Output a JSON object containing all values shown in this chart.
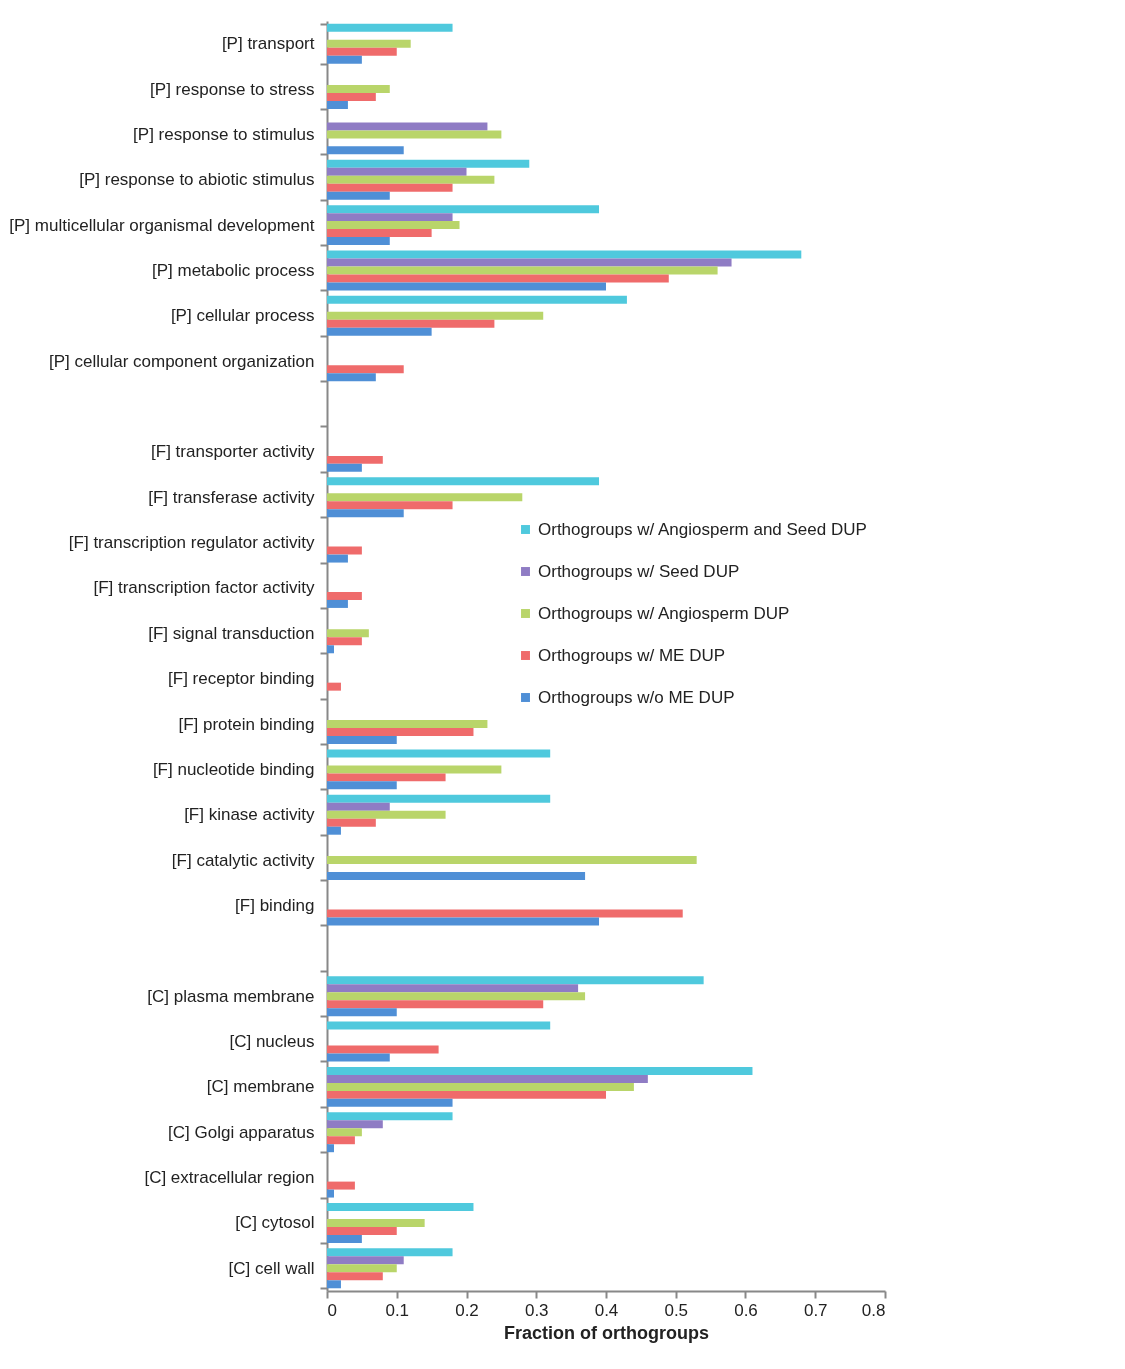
{
  "chart_data": {
    "type": "bar",
    "orientation": "horizontal",
    "xlabel": "Fraction of orthogroups",
    "xlim": [
      0,
      0.8
    ],
    "xticks": [
      0,
      0.1,
      0.2,
      0.3,
      0.4,
      0.5,
      0.6,
      0.7,
      0.8
    ],
    "grid": false,
    "legend": "right",
    "categories": [
      "[P] transport",
      "[P] response to stress",
      "[P] response to stimulus",
      "[P] response to abiotic stimulus",
      "[P] multicellular organismal development",
      "[P] metabolic process",
      "[P] cellular process",
      "[P] cellular component organization",
      null,
      "[F] transporter activity",
      "[F] transferase activity",
      "[F] transcription regulator activity",
      "[F] transcription factor activity",
      "[F] signal transduction",
      "[F] receptor binding",
      "[F] protein binding",
      "[F] nucleotide binding",
      "[F] kinase activity",
      "[F] catalytic activity",
      "[F] binding",
      null,
      "[C] plasma membrane",
      "[C] nucleus",
      "[C] membrane",
      "[C] Golgi apparatus",
      "[C] extracellular region",
      "[C] cytosol",
      "[C] cell wall"
    ],
    "series": [
      {
        "name": "Orthogroups w/ Angiosperm and Seed DUP",
        "color": "#4fc9dd",
        "values": [
          0.18,
          null,
          null,
          0.29,
          0.39,
          0.68,
          0.43,
          null,
          null,
          null,
          0.39,
          null,
          null,
          null,
          null,
          null,
          0.32,
          0.32,
          null,
          null,
          null,
          0.54,
          0.32,
          0.61,
          0.18,
          null,
          0.21,
          0.18
        ]
      },
      {
        "name": "Orthogroups w/ Seed DUP",
        "color": "#8f7cc4",
        "values": [
          null,
          null,
          0.23,
          0.2,
          0.18,
          0.58,
          null,
          null,
          null,
          null,
          null,
          null,
          null,
          null,
          null,
          null,
          null,
          0.09,
          null,
          null,
          null,
          0.36,
          null,
          0.46,
          0.08,
          null,
          null,
          0.11
        ]
      },
      {
        "name": "Orthogroups w/ Angiosperm DUP",
        "color": "#b9d56a",
        "values": [
          0.12,
          0.09,
          0.25,
          0.24,
          0.19,
          0.56,
          0.31,
          null,
          null,
          null,
          0.28,
          null,
          null,
          0.06,
          null,
          0.23,
          0.25,
          0.17,
          0.53,
          null,
          null,
          0.37,
          null,
          0.44,
          0.05,
          null,
          0.14,
          0.1
        ]
      },
      {
        "name": "Orthogroups w/ ME DUP",
        "color": "#ef6b6b",
        "values": [
          0.1,
          0.07,
          null,
          0.18,
          0.15,
          0.49,
          0.24,
          0.11,
          null,
          0.08,
          0.18,
          0.05,
          0.05,
          0.05,
          0.02,
          0.21,
          0.17,
          0.07,
          null,
          0.51,
          null,
          0.31,
          0.16,
          0.4,
          0.04,
          0.04,
          0.1,
          0.08
        ]
      },
      {
        "name": "Orthogroups w/o ME DUP",
        "color": "#4f8fd6",
        "values": [
          0.05,
          0.03,
          0.11,
          0.09,
          0.09,
          0.4,
          0.15,
          0.07,
          null,
          0.05,
          0.11,
          0.03,
          0.03,
          0.01,
          null,
          0.1,
          0.1,
          0.02,
          0.37,
          0.39,
          null,
          0.1,
          0.09,
          0.18,
          0.01,
          0.01,
          0.05,
          0.02
        ]
      }
    ]
  }
}
